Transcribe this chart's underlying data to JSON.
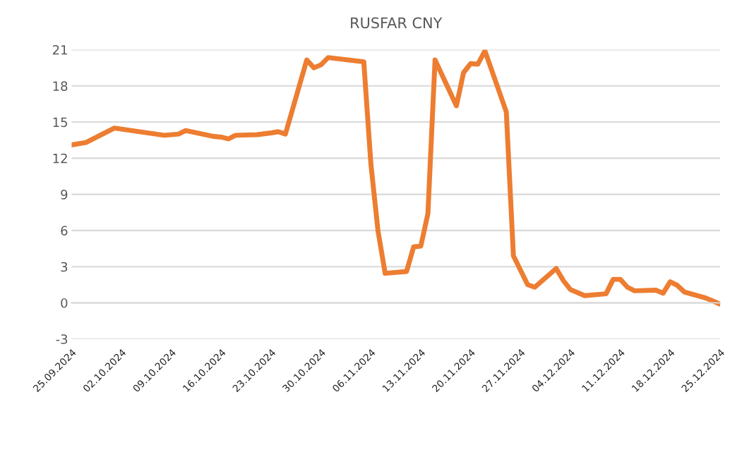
{
  "chart_data": {
    "type": "line",
    "title": "RUSFAR CNY",
    "x": [
      "2024-09-25",
      "2024-09-27",
      "2024-10-01",
      "2024-10-08",
      "2024-10-10",
      "2024-10-11",
      "2024-10-15",
      "2024-10-16",
      "2024-10-17",
      "2024-10-18",
      "2024-10-21",
      "2024-10-23",
      "2024-10-24",
      "2024-10-25",
      "2024-10-28",
      "2024-10-29",
      "2024-10-30",
      "2024-10-31",
      "2024-11-05",
      "2024-11-06",
      "2024-11-07",
      "2024-11-08",
      "2024-11-11",
      "2024-11-12",
      "2024-11-13",
      "2024-11-14",
      "2024-11-15",
      "2024-11-18",
      "2024-11-19",
      "2024-11-20",
      "2024-11-21",
      "2024-11-22",
      "2024-11-25",
      "2024-11-26",
      "2024-11-28",
      "2024-11-29",
      "2024-12-02",
      "2024-12-03",
      "2024-12-04",
      "2024-12-06",
      "2024-12-09",
      "2024-12-10",
      "2024-12-11",
      "2024-12-12",
      "2024-12-13",
      "2024-12-16",
      "2024-12-17",
      "2024-12-18",
      "2024-12-19",
      "2024-12-20",
      "2024-12-23",
      "2024-12-25"
    ],
    "series": [
      {
        "color": "#ed7d31",
        "values": [
          13.1,
          13.3,
          14.5,
          13.9,
          14.0,
          14.3,
          13.8,
          13.75,
          13.6,
          13.9,
          13.95,
          14.1,
          14.2,
          14.0,
          20.15,
          19.5,
          19.75,
          20.35,
          20.0,
          11.5,
          5.95,
          2.45,
          2.6,
          4.65,
          4.7,
          7.4,
          20.15,
          16.35,
          19.1,
          19.85,
          19.8,
          20.9,
          15.85,
          3.9,
          1.5,
          1.3,
          2.85,
          1.85,
          1.1,
          0.6,
          0.75,
          1.95,
          1.95,
          1.3,
          1.0,
          1.05,
          0.8,
          1.75,
          1.45,
          0.9,
          0.4,
          -0.1
        ]
      }
    ],
    "xlim": [
      "2024-09-25",
      "2024-12-25"
    ],
    "xticks": [
      {
        "value": "2024-09-25",
        "label": "25.09.2024"
      },
      {
        "value": "2024-10-02",
        "label": "02.10.2024"
      },
      {
        "value": "2024-10-09",
        "label": "09.10.2024"
      },
      {
        "value": "2024-10-16",
        "label": "16.10.2024"
      },
      {
        "value": "2024-10-23",
        "label": "23.10.2024"
      },
      {
        "value": "2024-10-30",
        "label": "30.10.2024"
      },
      {
        "value": "2024-11-06",
        "label": "06.11.2024"
      },
      {
        "value": "2024-11-13",
        "label": "13.11.2024"
      },
      {
        "value": "2024-11-20",
        "label": "20.11.2024"
      },
      {
        "value": "2024-11-27",
        "label": "27.11.2024"
      },
      {
        "value": "2024-12-04",
        "label": "04.12.2024"
      },
      {
        "value": "2024-12-11",
        "label": "11.12.2024"
      },
      {
        "value": "2024-12-18",
        "label": "18.12.2024"
      },
      {
        "value": "2024-12-25",
        "label": "25.12.2024"
      }
    ],
    "ylim": [
      -3,
      21
    ],
    "yticks": [
      -3,
      0,
      3,
      6,
      9,
      12,
      15,
      18,
      21
    ],
    "grid": "y",
    "marker": "none",
    "line_style": "solid",
    "legend": false
  }
}
